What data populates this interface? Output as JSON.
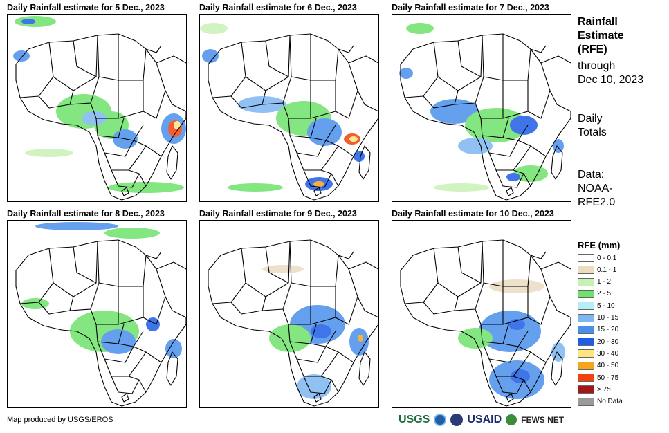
{
  "panels": [
    {
      "title": "Daily Rainfall estimate for 5 Dec., 2023"
    },
    {
      "title": "Daily Rainfall estimate for 6 Dec., 2023"
    },
    {
      "title": "Daily Rainfall estimate for 7 Dec., 2023"
    },
    {
      "title": "Daily Rainfall estimate for 8 Dec., 2023"
    },
    {
      "title": "Daily Rainfall estimate for 9 Dec., 2023"
    },
    {
      "title": "Daily Rainfall estimate for 10 Dec., 2023"
    }
  ],
  "sidebar": {
    "title_line1": "Rainfall",
    "title_line2": "Estimate",
    "title_line3": "(RFE)",
    "through_line1": "through",
    "through_line2": "Dec 10, 2023",
    "totals_line1": "Daily",
    "totals_line2": "Totals",
    "source_line1": "Data:",
    "source_line2": "NOAA-",
    "source_line3": "RFE2.0"
  },
  "legend": {
    "title": "RFE (mm)",
    "items": [
      {
        "label": "0 - 0.1",
        "color": "#ffffff"
      },
      {
        "label": "0.1 - 1",
        "color": "#ecdcc2"
      },
      {
        "label": "1 - 2",
        "color": "#c8f2b4"
      },
      {
        "label": "2 - 5",
        "color": "#6ee26a"
      },
      {
        "label": "5 - 10",
        "color": "#b6eef6"
      },
      {
        "label": "10 - 15",
        "color": "#7eb6f2"
      },
      {
        "label": "15 - 20",
        "color": "#4a90ea"
      },
      {
        "label": "20 - 30",
        "color": "#1e5ee6"
      },
      {
        "label": "30 - 40",
        "color": "#fde680"
      },
      {
        "label": "40 - 50",
        "color": "#f7a41e"
      },
      {
        "label": "50 - 75",
        "color": "#f2420e"
      },
      {
        "label": "> 75",
        "color": "#a31616"
      },
      {
        "label": "No Data",
        "color": "#9a9a9a"
      }
    ]
  },
  "footer": {
    "credit": "Map produced by USGS/EROS",
    "logos": {
      "usgs": "USGS",
      "usaid": "USAID",
      "fews": "FEWS NET"
    }
  }
}
